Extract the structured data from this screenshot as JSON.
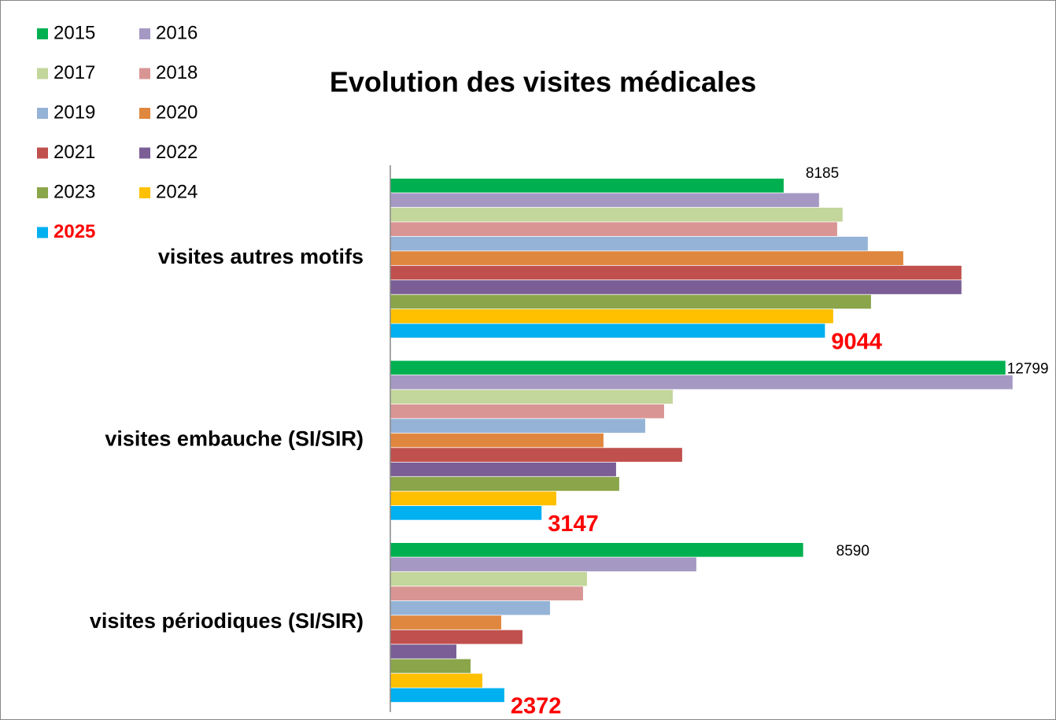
{
  "chart_data": {
    "type": "bar",
    "orientation": "horizontal",
    "title": "Evolution des visites médicales",
    "categories": [
      "visites autres motifs",
      "visites embauche (SI/SIR)",
      "visites périodiques (SI/SIR)"
    ],
    "xlim": [
      0,
      13000
    ],
    "legend": "top-left",
    "series": [
      {
        "name": "2015",
        "color": "#00b050",
        "values": [
          8185,
          12799,
          8590
        ],
        "show_labels": true
      },
      {
        "name": "2016",
        "color": "#a599c4",
        "values": [
          8921,
          12948,
          6368
        ]
      },
      {
        "name": "2017",
        "color": "#c3d69b",
        "values": [
          9412,
          5877,
          4092
        ]
      },
      {
        "name": "2018",
        "color": "#d99594",
        "values": [
          9298,
          5697,
          4010
        ]
      },
      {
        "name": "2019",
        "color": "#95b3d7",
        "values": [
          9936,
          5304,
          3323
        ]
      },
      {
        "name": "2020",
        "color": "#e0873f",
        "values": [
          10673,
          4436,
          2308
        ]
      },
      {
        "name": "2021",
        "color": "#c0504d",
        "values": [
          11884,
          6073,
          2750
        ]
      },
      {
        "name": "2022",
        "color": "#7b5e96",
        "values": [
          11884,
          4698,
          1375
        ]
      },
      {
        "name": "2023",
        "color": "#8aa54a",
        "values": [
          10002,
          4763,
          1670
        ]
      },
      {
        "name": "2024",
        "color": "#ffc000",
        "values": [
          9216,
          3454,
          1915
        ]
      },
      {
        "name": "2025",
        "color": "#00b0f0",
        "values": [
          9044,
          3147,
          2372
        ],
        "show_labels": true,
        "label_color": "#ff0000"
      }
    ]
  }
}
